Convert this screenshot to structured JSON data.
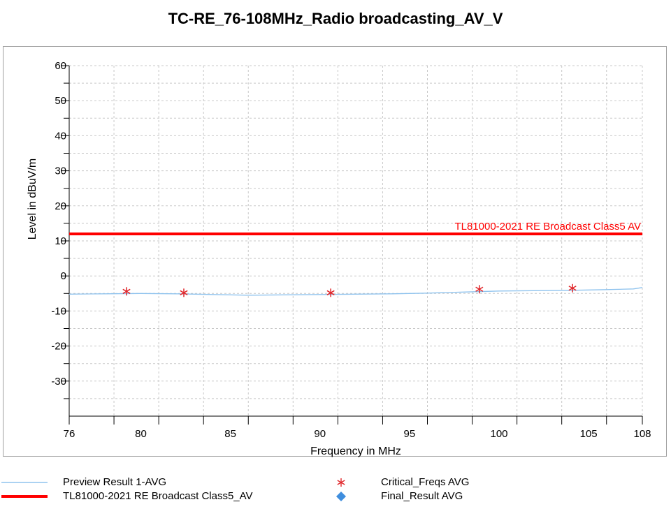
{
  "chart_data": {
    "type": "line",
    "title": "TC-RE_76-108MHz_Radio broadcasting_AV_V",
    "xlabel": "Frequency in MHz",
    "ylabel": "Level in dBuV/m",
    "xlim": [
      76,
      108
    ],
    "ylim": [
      -40,
      60
    ],
    "grid": true,
    "xticks": [
      76,
      80,
      85,
      90,
      95,
      100,
      105,
      108
    ],
    "yticks": [
      60,
      50,
      40,
      30,
      20,
      10,
      0,
      -10,
      -20,
      -30
    ],
    "series": [
      {
        "name": "Preview Result 1-AVG",
        "color": "#8fc3ee",
        "kind": "line",
        "x": [
          76,
          78,
          80,
          82,
          84,
          86,
          88,
          90,
          92,
          94,
          96,
          98,
          100,
          102,
          104,
          106,
          107.5,
          108
        ],
        "y": [
          -5.2,
          -5.1,
          -5.0,
          -5.1,
          -5.3,
          -5.5,
          -5.4,
          -5.3,
          -5.2,
          -5.1,
          -4.9,
          -4.6,
          -4.3,
          -4.2,
          -4.1,
          -3.9,
          -3.7,
          -3.3
        ]
      },
      {
        "name": "TL81000-2021 RE Broadcast Class5_AV",
        "color": "#ff0000",
        "kind": "limit",
        "x": [
          76,
          108
        ],
        "y": [
          12,
          12
        ]
      },
      {
        "name": "Critical_Freqs AVG",
        "color": "#e0262a",
        "kind": "marker",
        "marker": "asterisk",
        "x": [
          79.2,
          82.4,
          90.6,
          98.9,
          104.1
        ],
        "y": [
          -4.4,
          -4.8,
          -4.8,
          -3.8,
          -3.5
        ]
      },
      {
        "name": "Final_Result AVG",
        "color": "#3f8ede",
        "kind": "marker",
        "marker": "diamond",
        "x": [],
        "y": []
      }
    ],
    "annotations": [
      {
        "text": "TL81000-2021 RE Broadcast Class5  AV",
        "x": 108,
        "y": 12,
        "color": "#ff0000"
      }
    ],
    "legend_position": "bottom"
  }
}
